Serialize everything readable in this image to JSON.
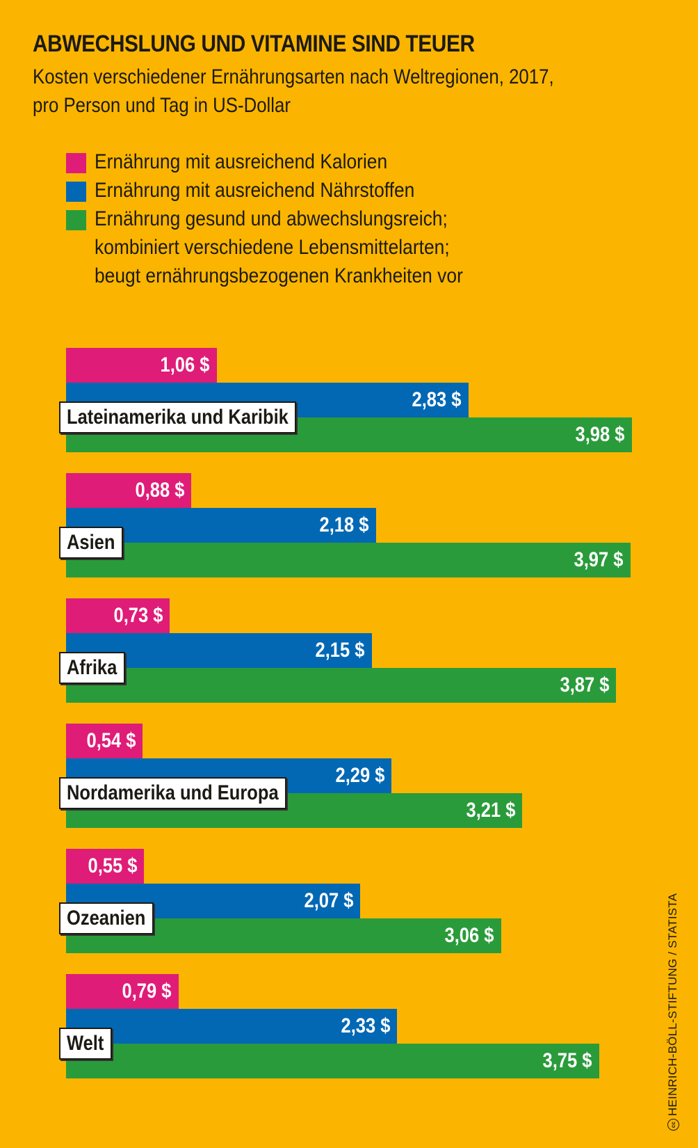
{
  "colors": {
    "background": "#fbb500",
    "calories": "#df1c78",
    "nutrients": "#0268b4",
    "healthy": "#2a9b3a"
  },
  "chart_data": {
    "type": "bar",
    "orientation": "horizontal",
    "title": "ABWECHSLUNG UND VITAMINE SIND TEUER",
    "subtitle_lines": [
      "Kosten verschiedener Ernährungsarten nach Weltregionen, 2017,",
      "pro Person und Tag in US-Dollar"
    ],
    "xlabel": "",
    "ylabel": "",
    "unit": "$",
    "xlim": [
      0,
      4.2
    ],
    "grid": false,
    "legend_position": "top-left",
    "legend": [
      {
        "key": "calories",
        "lines": [
          "Ernährung mit ausreichend Kalorien"
        ]
      },
      {
        "key": "nutrients",
        "lines": [
          "Ernährung mit ausreichend Nährstoffen"
        ]
      },
      {
        "key": "healthy",
        "lines": [
          "Ernährung gesund und abwechslungsreich;",
          "kombiniert verschiedene Lebensmittelarten;",
          "beugt ernährungsbezogenen Krankheiten vor"
        ]
      }
    ],
    "categories": [
      "Lateinamerika und Karibik",
      "Asien",
      "Afrika",
      "Nordamerika und Europa",
      "Ozeanien",
      "Welt"
    ],
    "series": [
      {
        "name": "Ernährung mit ausreichend Kalorien",
        "key": "calories",
        "values": [
          1.06,
          0.88,
          0.73,
          0.54,
          0.55,
          0.79
        ],
        "labels": [
          "1,06 $",
          "0,88 $",
          "0,73 $",
          "0,54 $",
          "0,55 $",
          "0,79 $"
        ]
      },
      {
        "name": "Ernährung mit ausreichend Nährstoffen",
        "key": "nutrients",
        "values": [
          2.83,
          2.18,
          2.15,
          2.29,
          2.07,
          2.33
        ],
        "labels": [
          "2,83 $",
          "2,18 $",
          "2,15 $",
          "2,29 $",
          "2,07 $",
          "2,33 $"
        ]
      },
      {
        "name": "Ernährung gesund und abwechslungsreich",
        "key": "healthy",
        "values": [
          3.98,
          3.97,
          3.87,
          3.21,
          3.06,
          3.75
        ],
        "labels": [
          "3,98 $",
          "3,97 $",
          "3,87 $",
          "3,21 $",
          "3,06 $",
          "3,75 $"
        ]
      }
    ]
  },
  "credit": {
    "icon": "creative-commons-icon",
    "icon_glyph": "cc",
    "text": "HEINRICH-BÖLL-STIFTUNG / STATISTA"
  }
}
